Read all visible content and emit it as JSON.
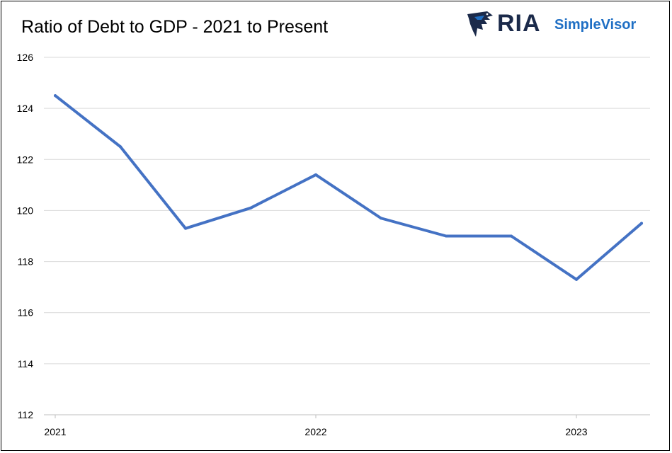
{
  "chart_data": {
    "type": "line",
    "title": "Ratio of Debt to GDP - 2021 to Present",
    "xlabel": "",
    "ylabel": "",
    "ylim": [
      112,
      126
    ],
    "y_ticks": [
      "112",
      "114",
      "116",
      "118",
      "120",
      "122",
      "124",
      "126"
    ],
    "x_ticks": [
      {
        "label": "2021",
        "at": 0
      },
      {
        "label": "2022",
        "at": 4
      },
      {
        "label": "2023",
        "at": 8
      }
    ],
    "grid": true,
    "legend": "none",
    "series": [
      {
        "color": "#4472c4",
        "values": [
          124.5,
          122.5,
          119.3,
          120.1,
          121.4,
          119.7,
          119.0,
          119.0,
          117.3,
          119.5
        ]
      }
    ]
  },
  "logo": {
    "brand": "RIA",
    "product": "SimpleVisor",
    "icon": "eagle-icon",
    "colors": {
      "brand": "#1b2a4a",
      "product": "#1f6fc4"
    }
  }
}
